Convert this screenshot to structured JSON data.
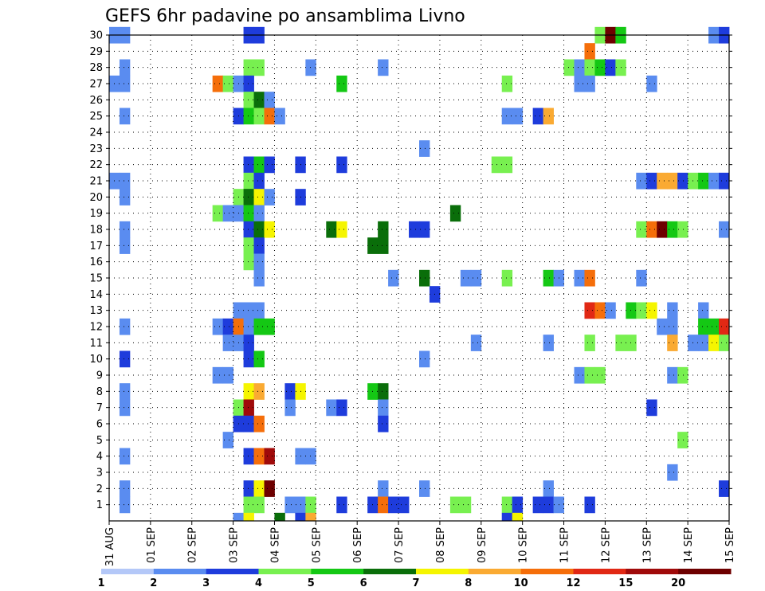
{
  "chart_data": {
    "type": "heatmap",
    "title": "GEFS 6hr padavine po ansamblima Livno",
    "xlabel": "",
    "ylabel": "",
    "x_ticks": [
      "31 AUG",
      "01 SEP",
      "02 SEP",
      "03 SEP",
      "04 SEP",
      "05 SEP",
      "06 SEP",
      "07 SEP",
      "08 SEP",
      "09 SEP",
      "10 SEP",
      "11 SEP",
      "12 SEP",
      "13 SEP",
      "14 SEP",
      "15 SEP"
    ],
    "y_ticks": [
      "1",
      "2",
      "3",
      "4",
      "5",
      "6",
      "7",
      "8",
      "9",
      "10",
      "11",
      "12",
      "13",
      "14",
      "15",
      "16",
      "17",
      "18",
      "19",
      "20",
      "21",
      "22",
      "23",
      "24",
      "25",
      "26",
      "27",
      "28",
      "29",
      "30"
    ],
    "x_steps": 60,
    "steps_per_day": 4,
    "y_range": [
      0,
      30
    ],
    "grid": true,
    "colorbar": {
      "labels": [
        "1",
        "2",
        "3",
        "4",
        "5",
        "6",
        "7",
        "8",
        "10",
        "12",
        "15",
        "20"
      ],
      "colors": [
        "#b4c8f8",
        "#5a8cf0",
        "#1e3cdc",
        "#78f050",
        "#14c814",
        "#0a6e0a",
        "#f5f500",
        "#faaa32",
        "#f56e0a",
        "#e12814",
        "#a00a0a",
        "#6e0000"
      ]
    },
    "cells": [
      [
        0,
        30,
        1
      ],
      [
        1,
        30,
        1
      ],
      [
        13,
        30,
        2
      ],
      [
        14,
        30,
        2
      ],
      [
        47,
        30,
        3
      ],
      [
        48,
        30,
        11
      ],
      [
        49,
        30,
        4
      ],
      [
        58,
        30,
        1
      ],
      [
        59,
        30,
        2
      ],
      [
        46,
        29,
        8
      ],
      [
        1,
        28,
        1
      ],
      [
        13,
        28,
        3
      ],
      [
        14,
        28,
        3
      ],
      [
        19,
        28,
        1
      ],
      [
        26,
        28,
        1
      ],
      [
        44,
        28,
        3
      ],
      [
        45,
        28,
        1
      ],
      [
        46,
        28,
        3
      ],
      [
        47,
        28,
        4
      ],
      [
        48,
        28,
        2
      ],
      [
        49,
        28,
        3
      ],
      [
        0,
        27,
        1
      ],
      [
        1,
        27,
        1
      ],
      [
        10,
        27,
        8
      ],
      [
        11,
        27,
        3
      ],
      [
        12,
        27,
        1
      ],
      [
        13,
        27,
        2
      ],
      [
        22,
        27,
        4
      ],
      [
        38,
        27,
        3
      ],
      [
        45,
        27,
        1
      ],
      [
        46,
        27,
        1
      ],
      [
        52,
        27,
        1
      ],
      [
        13,
        26,
        3
      ],
      [
        14,
        26,
        5
      ],
      [
        15,
        26,
        1
      ],
      [
        1,
        25,
        1
      ],
      [
        12,
        25,
        2
      ],
      [
        13,
        25,
        4
      ],
      [
        14,
        25,
        3
      ],
      [
        15,
        25,
        8
      ],
      [
        16,
        25,
        1
      ],
      [
        38,
        25,
        1
      ],
      [
        39,
        25,
        1
      ],
      [
        41,
        25,
        2
      ],
      [
        42,
        25,
        7
      ],
      [
        30,
        23,
        1
      ],
      [
        13,
        22,
        2
      ],
      [
        14,
        22,
        4
      ],
      [
        15,
        22,
        2
      ],
      [
        18,
        22,
        2
      ],
      [
        22,
        22,
        2
      ],
      [
        37,
        22,
        3
      ],
      [
        38,
        22,
        3
      ],
      [
        0,
        21,
        1
      ],
      [
        1,
        21,
        1
      ],
      [
        13,
        21,
        3
      ],
      [
        14,
        21,
        2
      ],
      [
        51,
        21,
        1
      ],
      [
        52,
        21,
        2
      ],
      [
        53,
        21,
        7
      ],
      [
        54,
        21,
        7
      ],
      [
        55,
        21,
        2
      ],
      [
        56,
        21,
        3
      ],
      [
        57,
        21,
        4
      ],
      [
        58,
        21,
        1
      ],
      [
        59,
        21,
        2
      ],
      [
        1,
        20,
        1
      ],
      [
        12,
        20,
        3
      ],
      [
        13,
        20,
        5
      ],
      [
        14,
        20,
        6
      ],
      [
        15,
        20,
        1
      ],
      [
        18,
        20,
        2
      ],
      [
        10,
        19,
        3
      ],
      [
        11,
        19,
        1
      ],
      [
        12,
        19,
        1
      ],
      [
        13,
        19,
        4
      ],
      [
        14,
        19,
        1
      ],
      [
        33,
        19,
        5
      ],
      [
        1,
        18,
        1
      ],
      [
        13,
        18,
        2
      ],
      [
        14,
        18,
        5
      ],
      [
        15,
        18,
        6
      ],
      [
        21,
        18,
        5
      ],
      [
        22,
        18,
        6
      ],
      [
        26,
        18,
        5
      ],
      [
        29,
        18,
        2
      ],
      [
        30,
        18,
        2
      ],
      [
        51,
        18,
        3
      ],
      [
        52,
        18,
        8
      ],
      [
        53,
        18,
        11
      ],
      [
        54,
        18,
        4
      ],
      [
        55,
        18,
        3
      ],
      [
        59,
        18,
        1
      ],
      [
        1,
        17,
        1
      ],
      [
        13,
        17,
        3
      ],
      [
        14,
        17,
        2
      ],
      [
        25,
        17,
        5
      ],
      [
        26,
        17,
        5
      ],
      [
        13,
        16,
        3
      ],
      [
        14,
        16,
        1
      ],
      [
        14,
        15,
        1
      ],
      [
        27,
        15,
        1
      ],
      [
        30,
        15,
        5
      ],
      [
        34,
        15,
        1
      ],
      [
        35,
        15,
        1
      ],
      [
        38,
        15,
        3
      ],
      [
        42,
        15,
        4
      ],
      [
        43,
        15,
        1
      ],
      [
        45,
        15,
        1
      ],
      [
        46,
        15,
        8
      ],
      [
        51,
        15,
        1
      ],
      [
        31,
        14,
        2
      ],
      [
        12,
        13,
        1
      ],
      [
        13,
        13,
        1
      ],
      [
        14,
        13,
        1
      ],
      [
        46,
        13,
        9
      ],
      [
        47,
        13,
        8
      ],
      [
        48,
        13,
        1
      ],
      [
        50,
        13,
        4
      ],
      [
        51,
        13,
        3
      ],
      [
        52,
        13,
        6
      ],
      [
        54,
        13,
        1
      ],
      [
        57,
        13,
        1
      ],
      [
        1,
        12,
        1
      ],
      [
        10,
        12,
        1
      ],
      [
        11,
        12,
        2
      ],
      [
        12,
        12,
        8
      ],
      [
        13,
        12,
        1
      ],
      [
        14,
        12,
        4
      ],
      [
        15,
        12,
        4
      ],
      [
        53,
        12,
        1
      ],
      [
        54,
        12,
        1
      ],
      [
        57,
        12,
        4
      ],
      [
        58,
        12,
        4
      ],
      [
        59,
        12,
        9
      ],
      [
        11,
        11,
        1
      ],
      [
        12,
        11,
        1
      ],
      [
        13,
        11,
        2
      ],
      [
        35,
        11,
        1
      ],
      [
        42,
        11,
        1
      ],
      [
        46,
        11,
        3
      ],
      [
        49,
        11,
        3
      ],
      [
        50,
        11,
        3
      ],
      [
        54,
        11,
        7
      ],
      [
        56,
        11,
        1
      ],
      [
        57,
        11,
        1
      ],
      [
        58,
        11,
        6
      ],
      [
        59,
        11,
        3
      ],
      [
        1,
        10,
        2
      ],
      [
        13,
        10,
        2
      ],
      [
        14,
        10,
        4
      ],
      [
        30,
        10,
        1
      ],
      [
        10,
        9,
        1
      ],
      [
        11,
        9,
        1
      ],
      [
        45,
        9,
        1
      ],
      [
        46,
        9,
        3
      ],
      [
        47,
        9,
        3
      ],
      [
        54,
        9,
        1
      ],
      [
        55,
        9,
        3
      ],
      [
        1,
        8,
        1
      ],
      [
        13,
        8,
        6
      ],
      [
        14,
        8,
        7
      ],
      [
        17,
        8,
        2
      ],
      [
        18,
        8,
        6
      ],
      [
        25,
        8,
        4
      ],
      [
        26,
        8,
        5
      ],
      [
        1,
        7,
        1
      ],
      [
        12,
        7,
        3
      ],
      [
        13,
        7,
        10
      ],
      [
        17,
        7,
        1
      ],
      [
        21,
        7,
        1
      ],
      [
        22,
        7,
        2
      ],
      [
        26,
        7,
        1
      ],
      [
        52,
        7,
        2
      ],
      [
        12,
        6,
        2
      ],
      [
        13,
        6,
        2
      ],
      [
        14,
        6,
        8
      ],
      [
        26,
        6,
        2
      ],
      [
        11,
        5,
        1
      ],
      [
        55,
        5,
        3
      ],
      [
        1,
        4,
        1
      ],
      [
        13,
        4,
        2
      ],
      [
        14,
        4,
        8
      ],
      [
        15,
        4,
        10
      ],
      [
        18,
        4,
        1
      ],
      [
        19,
        4,
        1
      ],
      [
        54,
        3,
        1
      ],
      [
        1,
        2,
        1
      ],
      [
        13,
        2,
        2
      ],
      [
        14,
        2,
        6
      ],
      [
        15,
        2,
        11
      ],
      [
        26,
        2,
        1
      ],
      [
        30,
        2,
        1
      ],
      [
        42,
        2,
        1
      ],
      [
        59,
        2,
        2
      ],
      [
        1,
        1,
        1
      ],
      [
        13,
        1,
        3
      ],
      [
        14,
        1,
        3
      ],
      [
        17,
        1,
        1
      ],
      [
        18,
        1,
        1
      ],
      [
        19,
        1,
        3
      ],
      [
        22,
        1,
        2
      ],
      [
        25,
        1,
        2
      ],
      [
        26,
        1,
        8
      ],
      [
        27,
        1,
        2
      ],
      [
        28,
        1,
        2
      ],
      [
        33,
        1,
        3
      ],
      [
        34,
        1,
        3
      ],
      [
        38,
        1,
        3
      ],
      [
        39,
        1,
        2
      ],
      [
        41,
        1,
        2
      ],
      [
        42,
        1,
        2
      ],
      [
        43,
        1,
        1
      ],
      [
        46,
        1,
        2
      ],
      [
        12,
        0,
        1
      ],
      [
        13,
        0,
        6
      ],
      [
        16,
        0,
        5
      ],
      [
        18,
        0,
        2
      ],
      [
        19,
        0,
        7
      ],
      [
        38,
        0,
        2
      ],
      [
        39,
        0,
        6
      ]
    ]
  }
}
